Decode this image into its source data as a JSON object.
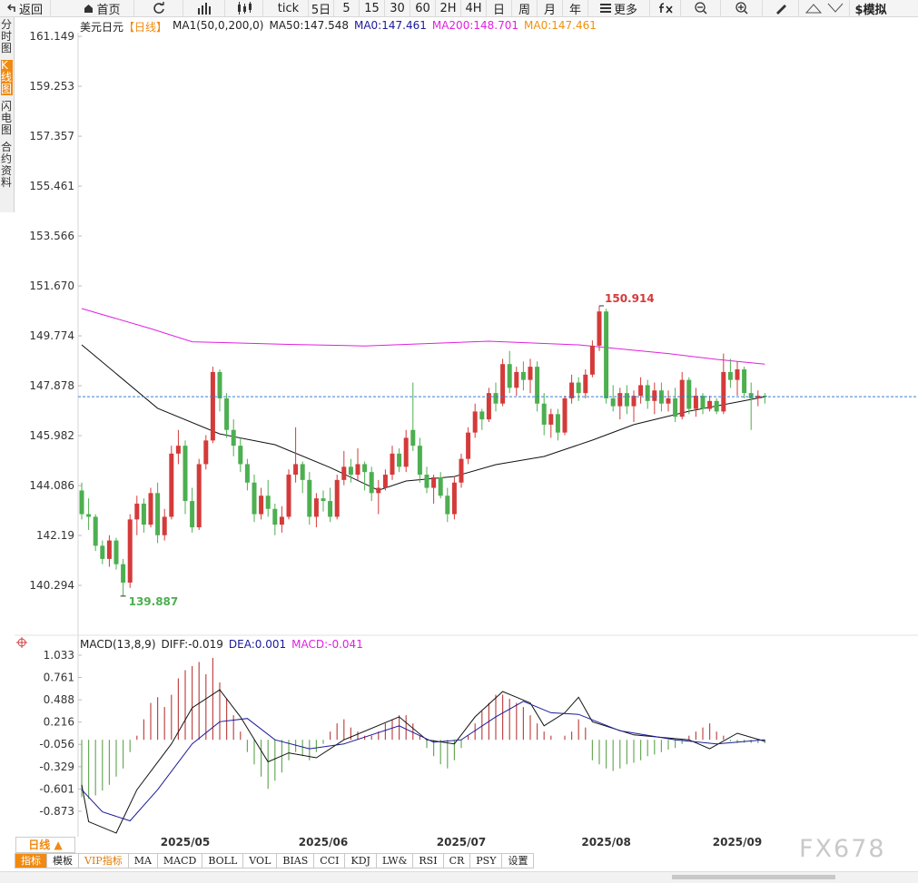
{
  "toolbar": {
    "back": "返回",
    "home": "首页",
    "periods": [
      "tick",
      "5日",
      "5",
      "15",
      "30",
      "60",
      "2H",
      "4H",
      "日",
      "周",
      "月",
      "年"
    ],
    "more": "更多",
    "simulate": "$模拟"
  },
  "sidebar": {
    "items": [
      "分时图",
      "K线图",
      "闪电图",
      "合约资料"
    ],
    "active": 1
  },
  "chart_data": [
    {
      "type": "candlestick",
      "title": "美元日元",
      "subtitle": "【日线】",
      "legend": [
        {
          "text": "MA1(50,0,200,0)",
          "color": "#222222"
        },
        {
          "text": "MA50:147.548",
          "color": "#222222"
        },
        {
          "text": "MA0:147.461",
          "color": "#1a1a9a"
        },
        {
          "text": "MA200:148.701",
          "color": "#e020e0"
        },
        {
          "text": "MA0:147.461",
          "color": "#f0900a"
        }
      ],
      "colors": {
        "up": "#d43a3a",
        "down": "#4caf50",
        "last": "#3a7fd0"
      },
      "ylim": [
        138.4,
        161.29
      ],
      "yticks": [
        161.149,
        159.253,
        157.357,
        155.461,
        153.566,
        {
          "value": 151.67,
          "label": "151.670"
        },
        149.774,
        147.878,
        145.982,
        144.086,
        142.19,
        140.294
      ],
      "open": [
        143.9,
        143.0,
        142.9,
        141.8,
        141.3,
        142.0,
        141.1,
        140.4,
        142.8,
        143.4,
        142.6,
        143.8,
        142.2,
        142.9,
        145.3,
        145.6,
        143.5,
        142.5,
        144.9,
        145.8,
        148.4,
        147.4,
        146.2,
        145.6,
        144.9,
        144.2,
        143.0,
        143.7,
        143.2,
        142.6,
        142.9,
        144.5,
        144.9,
        144.3,
        142.9,
        143.6,
        143.5,
        142.9,
        144.3,
        144.8,
        144.5,
        144.9,
        144.6,
        143.8,
        144.0,
        144.5,
        145.3,
        144.8,
        146.2,
        145.6,
        144.5,
        144.0,
        144.4,
        143.7,
        143.0,
        144.2,
        145.1,
        146.1,
        146.9,
        146.6,
        147.6,
        147.2,
        148.7,
        147.8,
        148.4,
        148.1,
        148.6,
        147.2,
        146.4,
        146.8,
        146.1,
        147.4,
        148.0,
        147.6,
        148.3,
        149.4,
        150.7,
        147.4,
        147.1,
        147.6,
        147.1,
        147.5,
        147.9,
        147.3,
        147.7,
        147.2,
        147.4,
        146.7,
        148.1,
        147.0,
        147.5,
        147.0,
        147.3,
        146.9,
        148.4,
        148.1,
        148.5,
        147.6,
        147.4,
        147.5
      ],
      "high": [
        144.2,
        143.6,
        143.0,
        142.0,
        142.2,
        142.1,
        141.3,
        143.0,
        143.7,
        143.6,
        144.0,
        144.2,
        143.2,
        145.6,
        146.2,
        145.8,
        144.0,
        145.1,
        146.0,
        148.6,
        148.5,
        147.6,
        146.6,
        145.9,
        145.1,
        144.5,
        144.0,
        144.3,
        143.4,
        143.3,
        144.7,
        146.3,
        145.0,
        144.6,
        143.8,
        143.9,
        144.0,
        144.5,
        145.4,
        145.1,
        145.5,
        145.0,
        144.8,
        144.3,
        144.7,
        145.6,
        145.5,
        146.2,
        148.0,
        145.9,
        144.8,
        144.5,
        144.6,
        144.0,
        144.4,
        145.3,
        146.3,
        147.2,
        147.0,
        147.8,
        148.0,
        148.9,
        149.2,
        148.6,
        148.8,
        148.9,
        148.8,
        147.6,
        147.0,
        147.0,
        147.5,
        148.3,
        148.2,
        148.5,
        149.6,
        150.914,
        150.8,
        147.9,
        147.8,
        147.9,
        147.7,
        148.2,
        148.1,
        148.0,
        148.0,
        147.7,
        147.8,
        148.4,
        148.2,
        147.8,
        147.6,
        147.5,
        147.4,
        149.1,
        148.9,
        148.8,
        148.6,
        148.0,
        147.7,
        147.6
      ],
      "low": [
        142.8,
        142.4,
        141.6,
        141.1,
        141.0,
        140.9,
        139.887,
        140.2,
        142.2,
        142.3,
        142.5,
        141.9,
        142.0,
        142.8,
        144.9,
        143.0,
        142.3,
        142.4,
        144.7,
        145.7,
        146.9,
        145.9,
        145.2,
        144.6,
        143.9,
        142.7,
        142.8,
        142.9,
        142.2,
        142.3,
        142.8,
        144.2,
        143.8,
        142.6,
        142.5,
        143.1,
        142.7,
        142.8,
        144.1,
        144.2,
        144.3,
        143.9,
        143.5,
        143.0,
        143.9,
        144.3,
        144.6,
        144.6,
        145.4,
        144.2,
        143.8,
        143.4,
        143.6,
        142.7,
        142.8,
        144.0,
        144.9,
        145.9,
        146.2,
        146.5,
        146.9,
        147.1,
        147.6,
        147.5,
        147.7,
        147.6,
        146.9,
        146.0,
        145.9,
        145.8,
        146.0,
        147.2,
        147.3,
        147.4,
        148.2,
        149.2,
        147.2,
        146.9,
        146.6,
        146.8,
        146.5,
        147.2,
        147.0,
        146.8,
        146.9,
        146.9,
        146.5,
        146.6,
        146.8,
        146.7,
        146.8,
        146.9,
        146.8,
        146.8,
        147.8,
        147.5,
        147.4,
        146.2,
        147.1,
        147.2
      ],
      "close": [
        143.0,
        142.9,
        141.8,
        141.3,
        142.0,
        141.1,
        140.4,
        142.8,
        143.4,
        142.6,
        143.8,
        142.2,
        142.9,
        145.3,
        145.6,
        143.5,
        142.5,
        144.9,
        145.8,
        148.4,
        147.4,
        146.2,
        145.6,
        144.9,
        144.2,
        143.0,
        143.7,
        143.2,
        142.6,
        142.9,
        144.5,
        144.9,
        144.3,
        142.9,
        143.6,
        143.5,
        142.9,
        144.3,
        144.8,
        144.5,
        144.9,
        144.6,
        143.8,
        144.0,
        144.5,
        145.3,
        144.8,
        145.9,
        145.6,
        144.5,
        144.0,
        144.4,
        143.7,
        143.0,
        144.2,
        145.1,
        146.1,
        146.9,
        146.6,
        147.6,
        147.2,
        148.7,
        147.8,
        148.4,
        148.1,
        148.6,
        147.2,
        146.4,
        146.8,
        146.1,
        147.4,
        148.0,
        147.6,
        148.3,
        149.4,
        150.7,
        147.4,
        147.1,
        147.6,
        147.1,
        147.5,
        147.9,
        147.3,
        147.7,
        147.2,
        147.4,
        146.7,
        148.1,
        147.0,
        147.5,
        147.0,
        147.3,
        146.9,
        148.4,
        148.1,
        148.5,
        147.6,
        147.4,
        147.5,
        147.461
      ],
      "lines": [
        {
          "color": "#e020e0",
          "x": [
            0,
            10,
            16,
            30,
            41,
            59,
            72,
            85,
            92,
            99
          ],
          "values": [
            150.81,
            150.05,
            149.55,
            149.45,
            149.39,
            149.57,
            149.43,
            149.1,
            148.88,
            148.7
          ]
        },
        {
          "color": "#111111",
          "x": [
            0,
            11,
            20,
            28,
            36,
            43,
            47,
            54,
            60,
            67,
            74,
            80,
            88,
            99
          ],
          "values": [
            149.43,
            147.02,
            146.05,
            145.64,
            144.77,
            143.91,
            144.26,
            144.43,
            144.88,
            145.19,
            145.81,
            146.4,
            146.91,
            147.46
          ]
        }
      ]
    },
    {
      "type": "macd",
      "legend": [
        {
          "text": "MACD(13,8,9)",
          "color": "#222222"
        },
        {
          "text": "DIFF:-0.019",
          "color": "#222222"
        },
        {
          "text": "DEA:0.001",
          "color": "#1a1a9a"
        },
        {
          "text": "MACD:-0.041",
          "color": "#e020e0"
        }
      ],
      "colors": {
        "up": "#c04848",
        "down": "#6aaa5a"
      },
      "ylim": [
        -1.184,
        1.188
      ],
      "yticks": [
        1.033,
        0.761,
        0.488,
        0.216,
        -0.056,
        -0.329,
        -0.601,
        -0.873
      ],
      "categories": [
        null,
        null,
        null,
        null,
        null,
        null,
        null,
        null,
        null,
        null,
        null,
        null,
        null,
        null,
        null,
        "2025/05",
        null,
        null,
        null,
        null,
        null,
        null,
        null,
        null,
        null,
        null,
        null,
        null,
        null,
        null,
        null,
        null,
        null,
        null,
        null,
        "2025/06",
        null,
        null,
        null,
        null,
        null,
        null,
        null,
        null,
        null,
        null,
        null,
        null,
        null,
        null,
        null,
        null,
        null,
        null,
        null,
        "2025/07",
        null,
        null,
        null,
        null,
        null,
        null,
        null,
        null,
        null,
        null,
        null,
        null,
        null,
        null,
        null,
        null,
        null,
        null,
        null,
        null,
        "2025/08",
        null,
        null,
        null,
        null,
        null,
        null,
        null,
        null,
        null,
        null,
        null,
        null,
        null,
        null,
        null,
        null,
        null,
        null,
        "2025/09",
        null,
        null,
        null,
        null
      ],
      "histogram": [
        -0.7,
        -0.72,
        -0.68,
        -0.62,
        -0.55,
        -0.45,
        -0.35,
        -0.15,
        0.05,
        0.25,
        0.45,
        0.52,
        0.4,
        0.55,
        0.75,
        0.85,
        0.9,
        0.95,
        0.8,
        1.0,
        0.7,
        0.5,
        0.3,
        0.1,
        -0.15,
        -0.3,
        -0.45,
        -0.6,
        -0.5,
        -0.4,
        -0.25,
        -0.15,
        -0.2,
        -0.25,
        -0.15,
        -0.05,
        0.1,
        0.2,
        0.25,
        0.15,
        0.1,
        0.05,
        0.05,
        0.1,
        0.2,
        0.25,
        0.3,
        0.3,
        0.2,
        0.05,
        -0.1,
        -0.2,
        -0.3,
        -0.35,
        -0.25,
        -0.1,
        0.05,
        0.2,
        0.35,
        0.45,
        0.55,
        0.55,
        0.5,
        0.45,
        0.4,
        0.3,
        0.2,
        0.1,
        0.05,
        0.0,
        0.05,
        0.1,
        0.25,
        0.15,
        -0.25,
        -0.3,
        -0.35,
        -0.38,
        -0.35,
        -0.3,
        -0.28,
        -0.25,
        -0.2,
        -0.18,
        -0.15,
        -0.12,
        -0.1,
        -0.05,
        0.05,
        0.1,
        0.15,
        0.2,
        0.1,
        0.05,
        -0.02,
        -0.04,
        -0.035,
        -0.04,
        -0.041,
        -0.041
      ],
      "lines": [
        {
          "color": "#111111",
          "x": [
            0,
            1,
            5,
            8,
            13,
            16,
            20,
            23,
            27,
            30,
            34,
            38,
            46,
            50,
            54,
            57,
            61,
            65,
            67,
            70,
            72,
            74,
            80,
            88,
            91,
            95,
            99
          ],
          "values": [
            -0.55,
            -1.0,
            -1.14,
            -0.61,
            -0.05,
            0.39,
            0.61,
            0.28,
            -0.27,
            -0.16,
            -0.22,
            0.0,
            0.28,
            0.0,
            -0.05,
            0.28,
            0.59,
            0.45,
            0.17,
            0.33,
            0.52,
            0.22,
            0.06,
            0.0,
            -0.11,
            0.08,
            -0.019
          ]
        },
        {
          "color": "#1a1a9a",
          "x": [
            0,
            3,
            7,
            11,
            16,
            20,
            24,
            28,
            33,
            38,
            46,
            51,
            55,
            60,
            64,
            68,
            72,
            78,
            86,
            92,
            99
          ],
          "values": [
            -0.61,
            -0.88,
            -0.99,
            -0.61,
            -0.05,
            0.22,
            0.26,
            0.0,
            -0.11,
            -0.05,
            0.17,
            -0.03,
            0.0,
            0.28,
            0.47,
            0.33,
            0.31,
            0.11,
            0.0,
            -0.05,
            0.001
          ]
        }
      ]
    }
  ],
  "bottom": {
    "period": "日线 ▲",
    "tabs": [
      "指标",
      "模板",
      "VIP指标",
      "MA",
      "MACD",
      "BOLL",
      "VOL",
      "BIAS",
      "CCI",
      "KDJ",
      "LW&",
      "RSI",
      "CR",
      "PSY",
      "设置"
    ],
    "active": 0,
    "vip": 2
  },
  "watermark": "FX678"
}
